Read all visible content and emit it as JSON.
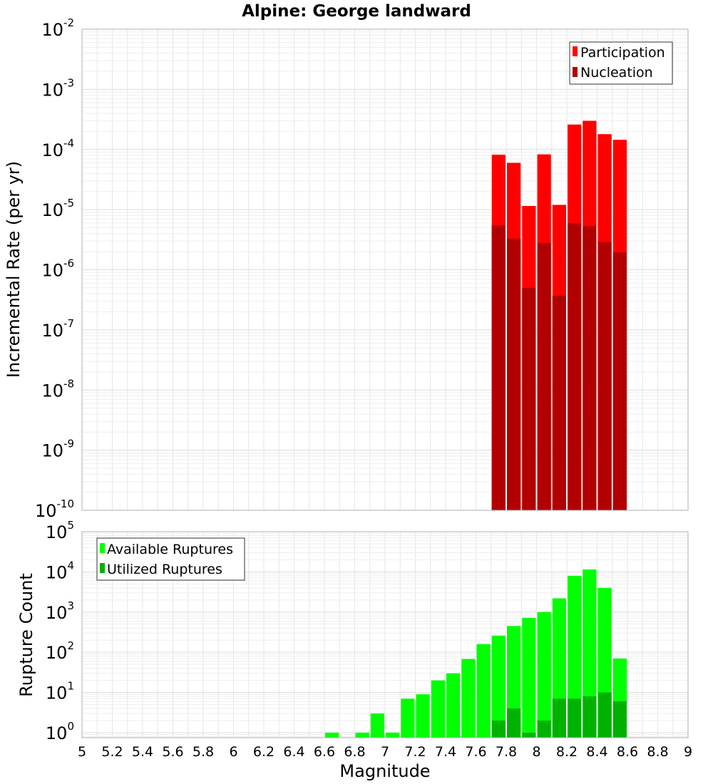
{
  "title": "Alpine: George landward",
  "xlabel": "Magnitude",
  "xticks": [
    "5",
    "5.2",
    "5.4",
    "5.6",
    "5.8",
    "6",
    "6.2",
    "6.4",
    "6.6",
    "6.8",
    "7",
    "7.2",
    "7.4",
    "7.6",
    "7.8",
    "8",
    "8.2",
    "8.4",
    "8.6",
    "8.8",
    "9"
  ],
  "chart_data": [
    {
      "type": "bar",
      "title": "Alpine: George landward",
      "xlabel": "",
      "ylabel": "Incremental Rate (per yr)",
      "yscale": "log",
      "xlim": [
        5,
        9
      ],
      "ylim": [
        1e-10,
        0.01
      ],
      "ytick_exponents": [
        "-10",
        "-9",
        "-8",
        "-7",
        "-6",
        "-5",
        "-4",
        "-3",
        "-2"
      ],
      "grid": true,
      "legend_position": "top-right",
      "series": [
        {
          "name": "Participation",
          "color": "#ff0000",
          "points": [
            {
              "x": 7.75,
              "y": 8.2e-05
            },
            {
              "x": 7.85,
              "y": 6e-05
            },
            {
              "x": 7.95,
              "y": 1.15e-05
            },
            {
              "x": 8.05,
              "y": 8.3e-05
            },
            {
              "x": 8.15,
              "y": 1.2e-05
            },
            {
              "x": 8.25,
              "y": 0.00026
            },
            {
              "x": 8.35,
              "y": 0.0003
            },
            {
              "x": 8.45,
              "y": 0.00018
            },
            {
              "x": 8.55,
              "y": 0.000145
            }
          ]
        },
        {
          "name": "Nucleation",
          "color": "#b20000",
          "points": [
            {
              "x": 7.75,
              "y": 5.5e-06
            },
            {
              "x": 7.85,
              "y": 3.3e-06
            },
            {
              "x": 7.95,
              "y": 5e-07
            },
            {
              "x": 8.05,
              "y": 2.8e-06
            },
            {
              "x": 8.15,
              "y": 3.7e-07
            },
            {
              "x": 8.25,
              "y": 6e-06
            },
            {
              "x": 8.35,
              "y": 5.3e-06
            },
            {
              "x": 8.45,
              "y": 2.9e-06
            },
            {
              "x": 8.55,
              "y": 1.95e-06
            }
          ]
        }
      ]
    },
    {
      "type": "bar",
      "title": "",
      "xlabel": "Magnitude",
      "ylabel": "Rupture Count",
      "yscale": "log",
      "xlim": [
        5,
        9
      ],
      "ylim": [
        0.75,
        100000.0
      ],
      "ytick_exponents": [
        "0",
        "1",
        "2",
        "3",
        "4",
        "5"
      ],
      "grid": true,
      "legend_position": "top-left",
      "series": [
        {
          "name": "Available Ruptures",
          "color": "#00ff00",
          "points": [
            {
              "x": 6.65,
              "y": 1
            },
            {
              "x": 6.85,
              "y": 1
            },
            {
              "x": 6.95,
              "y": 3
            },
            {
              "x": 7.05,
              "y": 1
            },
            {
              "x": 7.15,
              "y": 7
            },
            {
              "x": 7.25,
              "y": 9
            },
            {
              "x": 7.35,
              "y": 20
            },
            {
              "x": 7.45,
              "y": 30
            },
            {
              "x": 7.55,
              "y": 68
            },
            {
              "x": 7.65,
              "y": 160
            },
            {
              "x": 7.75,
              "y": 260
            },
            {
              "x": 7.85,
              "y": 450
            },
            {
              "x": 7.95,
              "y": 720
            },
            {
              "x": 8.05,
              "y": 1000
            },
            {
              "x": 8.15,
              "y": 2200
            },
            {
              "x": 8.25,
              "y": 8000
            },
            {
              "x": 8.35,
              "y": 11500
            },
            {
              "x": 8.45,
              "y": 4000
            },
            {
              "x": 8.55,
              "y": 70
            }
          ]
        },
        {
          "name": "Utilized Ruptures",
          "color": "#00b200",
          "points": [
            {
              "x": 7.75,
              "y": 2
            },
            {
              "x": 7.85,
              "y": 4
            },
            {
              "x": 7.95,
              "y": 1
            },
            {
              "x": 8.05,
              "y": 2
            },
            {
              "x": 8.15,
              "y": 7
            },
            {
              "x": 8.25,
              "y": 7
            },
            {
              "x": 8.35,
              "y": 8
            },
            {
              "x": 8.45,
              "y": 10
            },
            {
              "x": 8.55,
              "y": 6
            }
          ]
        }
      ]
    }
  ]
}
